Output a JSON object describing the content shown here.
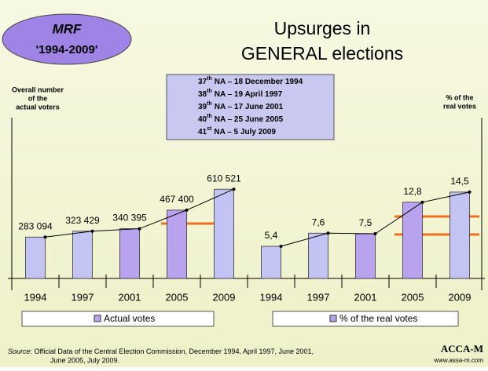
{
  "slide": {
    "badge": {
      "title": "MRF",
      "period": "'1994-2009'"
    },
    "title_lines": [
      "Upsurges in",
      "GENERAL elections"
    ],
    "na_list": [
      {
        "num": "37",
        "sup": "th",
        "text": "NA – 18 December 1994"
      },
      {
        "num": "38",
        "sup": "th",
        "text": "NA – 19 April 1997"
      },
      {
        "num": "39",
        "sup": "th",
        "text": "NA – 17 June 2001"
      },
      {
        "num": "40",
        "sup": "th",
        "text": "NA – 25 June 2005"
      },
      {
        "num": "41",
        "sup": "st",
        "text": "NA – 5 July 2009"
      }
    ],
    "source_label": "Source",
    "source_text": ":  Official Data of the Central Election Commission, December 1994, April 1997, June 2001,",
    "source_text2": "June 2005, July 2009.",
    "brand": "ACCA-M",
    "website": "www.assa-m.com"
  },
  "chart_data": [
    {
      "type": "bar",
      "axis_label_lines": [
        "Overall number",
        "of the",
        "actual voters"
      ],
      "categories": [
        "1994",
        "1997",
        "2001",
        "2005",
        "2009"
      ],
      "series": [
        {
          "name": "Actual votes",
          "color": "#b9a3ee",
          "colors": [
            "#c4c4f4",
            "#c4c4f4",
            "#b9a3ee",
            "#b9a3ee",
            "#c4c4f4"
          ],
          "values": [
            283094,
            323429,
            340395,
            467400,
            610521
          ],
          "value_labels": [
            "283 094",
            "323 429",
            "340 395",
            "467 400",
            "610 521"
          ]
        }
      ],
      "ylim": [
        0,
        1100000
      ],
      "markers": true
    },
    {
      "type": "bar",
      "axis_label_lines": [
        "% of the",
        "real votes"
      ],
      "categories": [
        "1994",
        "1997",
        "2001",
        "2005",
        "2009"
      ],
      "series": [
        {
          "name": "% of the real votes",
          "color": "#b9a3ee",
          "colors": [
            "#c4c4f4",
            "#c4c4f4",
            "#b9a3ee",
            "#b9a3ee",
            "#c4c4f4"
          ],
          "values": [
            5.4,
            7.6,
            7.5,
            12.8,
            14.5
          ],
          "value_labels": [
            "5,4",
            "7,6",
            "7,5",
            "12,8",
            "14,5"
          ]
        }
      ],
      "ylim": [
        0,
        27
      ],
      "markers": true
    }
  ]
}
